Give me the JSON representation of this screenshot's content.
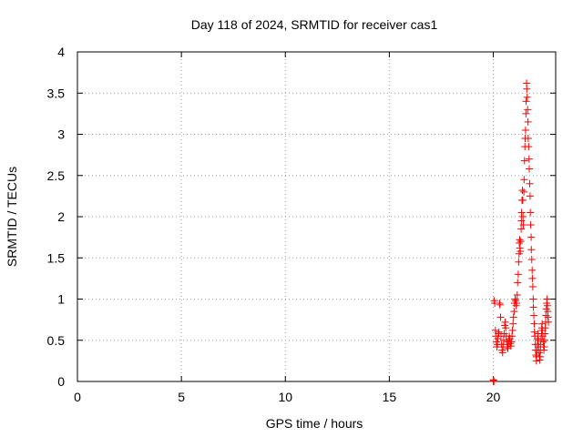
{
  "chart_data": {
    "type": "scatter",
    "title": "Day 118 of 2024, SRMTID for receiver cas1",
    "xlabel": "GPS time / hours",
    "ylabel": "SRMTID / TECUs",
    "xlim": [
      0,
      23
    ],
    "ylim": [
      0,
      4
    ],
    "grid": true,
    "marker": "+",
    "marker_color": "#ff0000",
    "xticks": [
      "0",
      "5",
      "10",
      "15",
      "20"
    ],
    "xtick_values": [
      0,
      5,
      10,
      15,
      20
    ],
    "yticks": [
      "0",
      "0.5",
      "1",
      "1.5",
      "2",
      "2.5",
      "3",
      "3.5",
      "4"
    ],
    "ytick_values": [
      0,
      0.5,
      1,
      1.5,
      2,
      2.5,
      3,
      3.5,
      4
    ],
    "series": [
      {
        "name": "cas1",
        "points": [
          [
            20.0,
            0.0
          ],
          [
            20.0,
            0.02
          ],
          [
            20.02,
            0.01
          ],
          [
            20.03,
            0.0
          ],
          [
            20.05,
            0.98
          ],
          [
            20.07,
            0.95
          ],
          [
            20.1,
            0.62
          ],
          [
            20.12,
            0.55
          ],
          [
            20.15,
            0.48
          ],
          [
            20.17,
            0.42
          ],
          [
            20.2,
            0.45
          ],
          [
            20.22,
            0.52
          ],
          [
            20.25,
            0.58
          ],
          [
            20.27,
            0.6
          ],
          [
            20.3,
            0.95
          ],
          [
            20.32,
            0.93
          ],
          [
            20.35,
            0.78
          ],
          [
            20.37,
            0.55
          ],
          [
            20.4,
            0.45
          ],
          [
            20.42,
            0.38
          ],
          [
            20.45,
            0.35
          ],
          [
            20.47,
            0.42
          ],
          [
            20.5,
            0.5
          ],
          [
            20.52,
            0.58
          ],
          [
            20.55,
            0.68
          ],
          [
            20.57,
            0.72
          ],
          [
            20.6,
            0.65
          ],
          [
            20.62,
            0.55
          ],
          [
            20.65,
            0.48
          ],
          [
            20.67,
            0.42
          ],
          [
            20.7,
            0.4
          ],
          [
            20.72,
            0.45
          ],
          [
            20.75,
            0.5
          ],
          [
            20.77,
            0.55
          ],
          [
            20.8,
            0.52
          ],
          [
            20.82,
            0.46
          ],
          [
            20.85,
            0.43
          ],
          [
            20.87,
            0.48
          ],
          [
            20.9,
            0.55
          ],
          [
            20.92,
            0.62
          ],
          [
            20.95,
            0.7
          ],
          [
            20.97,
            0.78
          ],
          [
            21.0,
            0.85
          ],
          [
            21.02,
            0.95
          ],
          [
            21.05,
            1.0
          ],
          [
            21.07,
            0.98
          ],
          [
            21.1,
            0.92
          ],
          [
            21.12,
            0.95
          ],
          [
            21.15,
            1.05
          ],
          [
            21.17,
            1.2
          ],
          [
            21.2,
            1.3
          ],
          [
            21.22,
            1.45
          ],
          [
            21.24,
            1.55
          ],
          [
            21.25,
            1.68
          ],
          [
            21.27,
            1.72
          ],
          [
            21.28,
            1.62
          ],
          [
            21.3,
            1.58
          ],
          [
            21.32,
            1.7
          ],
          [
            21.34,
            1.85
          ],
          [
            21.35,
            1.95
          ],
          [
            21.36,
            2.05
          ],
          [
            21.38,
            2.2
          ],
          [
            21.4,
            2.32
          ],
          [
            21.42,
            2.2
          ],
          [
            21.43,
            2.0
          ],
          [
            21.45,
            1.9
          ],
          [
            21.47,
            2.3
          ],
          [
            21.48,
            2.45
          ],
          [
            21.5,
            2.68
          ],
          [
            21.52,
            2.85
          ],
          [
            21.53,
            2.95
          ],
          [
            21.55,
            3.05
          ],
          [
            21.57,
            3.25
          ],
          [
            21.58,
            3.4
          ],
          [
            21.6,
            3.62
          ],
          [
            21.61,
            3.55
          ],
          [
            21.63,
            3.45
          ],
          [
            21.65,
            3.3
          ],
          [
            21.67,
            3.15
          ],
          [
            21.68,
            2.95
          ],
          [
            21.7,
            2.85
          ],
          [
            21.72,
            2.7
          ],
          [
            21.73,
            2.58
          ],
          [
            21.75,
            2.4
          ],
          [
            21.77,
            2.25
          ],
          [
            21.78,
            2.05
          ],
          [
            21.8,
            1.9
          ],
          [
            21.82,
            1.75
          ],
          [
            21.83,
            1.6
          ],
          [
            21.85,
            1.48
          ],
          [
            21.87,
            1.35
          ],
          [
            21.88,
            1.25
          ],
          [
            21.9,
            1.15
          ],
          [
            21.92,
            1.0
          ],
          [
            21.93,
            0.9
          ],
          [
            21.95,
            0.8
          ],
          [
            21.97,
            0.7
          ],
          [
            21.98,
            0.6
          ],
          [
            22.0,
            0.55
          ],
          [
            22.02,
            0.45
          ],
          [
            22.03,
            0.38
          ],
          [
            22.05,
            0.32
          ],
          [
            22.07,
            0.25
          ],
          [
            22.08,
            0.3
          ],
          [
            22.1,
            0.38
          ],
          [
            22.12,
            0.45
          ],
          [
            22.13,
            0.52
          ],
          [
            22.15,
            0.58
          ],
          [
            22.17,
            0.5
          ],
          [
            22.18,
            0.42
          ],
          [
            22.2,
            0.35
          ],
          [
            22.22,
            0.3
          ],
          [
            22.23,
            0.26
          ],
          [
            22.25,
            0.3
          ],
          [
            22.27,
            0.38
          ],
          [
            22.28,
            0.45
          ],
          [
            22.3,
            0.52
          ],
          [
            22.32,
            0.58
          ],
          [
            22.33,
            0.65
          ],
          [
            22.35,
            0.7
          ],
          [
            22.37,
            0.62
          ],
          [
            22.38,
            0.55
          ],
          [
            22.4,
            0.48
          ],
          [
            22.42,
            0.42
          ],
          [
            22.43,
            0.38
          ],
          [
            22.45,
            0.42
          ],
          [
            22.47,
            0.5
          ],
          [
            22.48,
            0.58
          ],
          [
            22.5,
            0.65
          ],
          [
            22.52,
            0.72
          ],
          [
            22.53,
            0.8
          ],
          [
            22.55,
            0.88
          ],
          [
            22.57,
            0.95
          ],
          [
            22.58,
            1.0
          ],
          [
            22.6,
            0.92
          ],
          [
            22.62,
            0.85
          ],
          [
            22.63,
            0.78
          ],
          [
            22.65,
            0.72
          ]
        ]
      }
    ]
  }
}
